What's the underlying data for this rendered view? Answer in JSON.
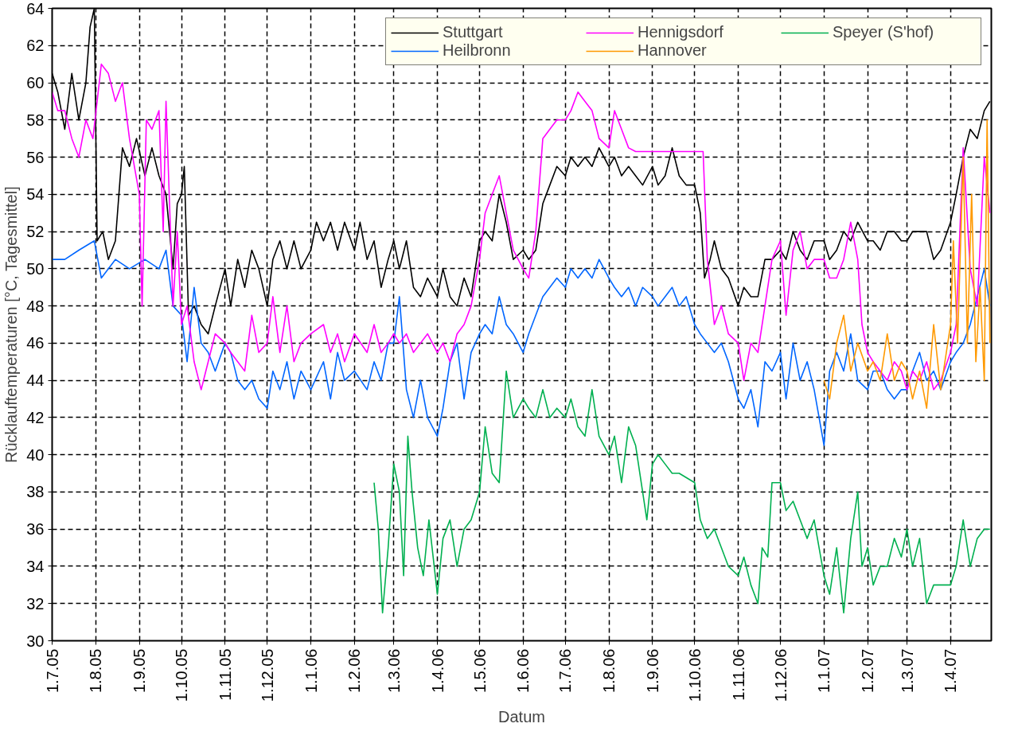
{
  "chart_data": {
    "type": "line",
    "xlabel": "Datum",
    "ylabel": "Rücklauftemperaturen [°C, Tagesmittel]",
    "xlim": [
      "2005-07-01",
      "2007-04-30"
    ],
    "ylim": [
      30,
      64
    ],
    "yticks": [
      30,
      32,
      34,
      36,
      38,
      40,
      42,
      44,
      46,
      48,
      50,
      52,
      54,
      56,
      58,
      60,
      62,
      64
    ],
    "xticks": [
      {
        "value": "2005-07-01",
        "label": "1.7.05"
      },
      {
        "value": "2005-08-01",
        "label": "1.8.05"
      },
      {
        "value": "2005-09-01",
        "label": "1.9.05"
      },
      {
        "value": "2005-10-01",
        "label": "1.10.05"
      },
      {
        "value": "2005-11-01",
        "label": "1.11.05"
      },
      {
        "value": "2005-12-01",
        "label": "1.12.05"
      },
      {
        "value": "2006-01-01",
        "label": "1.1.06"
      },
      {
        "value": "2006-02-01",
        "label": "1.2.06"
      },
      {
        "value": "2006-03-01",
        "label": "1.3.06"
      },
      {
        "value": "2006-04-01",
        "label": "1.4.06"
      },
      {
        "value": "2006-05-01",
        "label": "1.5.06"
      },
      {
        "value": "2006-06-01",
        "label": "1.6.06"
      },
      {
        "value": "2006-07-01",
        "label": "1.7.06"
      },
      {
        "value": "2006-08-01",
        "label": "1.8.06"
      },
      {
        "value": "2006-09-01",
        "label": "1.9.06"
      },
      {
        "value": "2006-10-01",
        "label": "1.10.06"
      },
      {
        "value": "2006-11-01",
        "label": "1.11.06"
      },
      {
        "value": "2006-12-01",
        "label": "1.12.06"
      },
      {
        "value": "2007-01-01",
        "label": "1.1.07"
      },
      {
        "value": "2007-02-01",
        "label": "1.2.07"
      },
      {
        "value": "2007-03-01",
        "label": "1.3.07"
      },
      {
        "value": "2007-04-01",
        "label": "1.4.07"
      }
    ],
    "grid": true,
    "legend": "top right",
    "line_style": "solid",
    "marker": "none",
    "series": [
      {
        "name": "Stuttgart",
        "color": "#000000",
        "x": [
          "2005-07-01",
          "2005-07-05",
          "2005-07-10",
          "2005-07-15",
          "2005-07-20",
          "2005-07-25",
          "2005-07-28",
          "2005-07-31",
          "2005-08-02",
          "2005-08-06",
          "2005-08-10",
          "2005-08-15",
          "2005-08-20",
          "2005-08-25",
          "2005-08-30",
          "2005-09-05",
          "2005-09-10",
          "2005-09-15",
          "2005-09-20",
          "2005-09-25",
          "2005-09-28",
          "2005-10-01",
          "2005-10-03",
          "2005-10-06",
          "2005-10-10",
          "2005-10-15",
          "2005-10-20",
          "2005-10-25",
          "2005-11-01",
          "2005-11-05",
          "2005-11-10",
          "2005-11-15",
          "2005-11-20",
          "2005-11-25",
          "2005-12-01",
          "2005-12-05",
          "2005-12-10",
          "2005-12-15",
          "2005-12-20",
          "2005-12-25",
          "2006-01-01",
          "2006-01-05",
          "2006-01-10",
          "2006-01-15",
          "2006-01-20",
          "2006-01-25",
          "2006-02-01",
          "2006-02-05",
          "2006-02-10",
          "2006-02-15",
          "2006-02-20",
          "2006-02-25",
          "2006-03-01",
          "2006-03-05",
          "2006-03-10",
          "2006-03-15",
          "2006-03-20",
          "2006-03-25",
          "2006-04-01",
          "2006-04-05",
          "2006-04-10",
          "2006-04-15",
          "2006-04-20",
          "2006-04-25",
          "2006-05-01",
          "2006-05-05",
          "2006-05-10",
          "2006-05-15",
          "2006-05-20",
          "2006-05-25",
          "2006-06-01",
          "2006-06-05",
          "2006-06-10",
          "2006-06-15",
          "2006-06-20",
          "2006-06-25",
          "2006-07-01",
          "2006-07-05",
          "2006-07-10",
          "2006-07-15",
          "2006-07-20",
          "2006-07-25",
          "2006-08-01",
          "2006-08-05",
          "2006-08-10",
          "2006-08-15",
          "2006-08-20",
          "2006-08-25",
          "2006-09-01",
          "2006-09-05",
          "2006-09-10",
          "2006-09-15",
          "2006-09-20",
          "2006-09-25",
          "2006-10-01",
          "2006-10-05",
          "2006-10-08",
          "2006-10-12",
          "2006-10-15",
          "2006-10-20",
          "2006-10-25",
          "2006-11-01",
          "2006-11-05",
          "2006-11-10",
          "2006-11-15",
          "2006-11-20",
          "2006-11-25",
          "2006-12-01",
          "2006-12-05",
          "2006-12-10",
          "2006-12-15",
          "2006-12-20",
          "2006-12-25",
          "2007-01-01",
          "2007-01-05",
          "2007-01-10",
          "2007-01-15",
          "2007-01-20",
          "2007-01-25",
          "2007-02-01",
          "2007-02-05",
          "2007-02-10",
          "2007-02-15",
          "2007-02-20",
          "2007-02-25",
          "2007-03-01",
          "2007-03-05",
          "2007-03-10",
          "2007-03-15",
          "2007-03-20",
          "2007-03-25",
          "2007-04-01",
          "2007-04-05",
          "2007-04-10",
          "2007-04-15",
          "2007-04-20",
          "2007-04-25",
          "2007-04-29"
        ],
        "values": [
          60.5,
          59.5,
          57.5,
          60.5,
          58,
          60,
          63,
          64,
          51.5,
          52,
          50.5,
          51.5,
          56.5,
          55.5,
          57,
          55,
          56.5,
          55,
          54,
          50,
          53.5,
          54,
          55.5,
          47.5,
          48,
          47,
          46.5,
          48,
          50,
          48,
          50.5,
          49,
          51,
          50,
          48,
          50.5,
          51.5,
          50,
          51.5,
          50,
          51,
          52.5,
          51.5,
          52.5,
          51,
          52.5,
          51,
          52.5,
          50.5,
          51.5,
          49,
          50.5,
          51.5,
          50,
          51.5,
          49,
          48.5,
          49.5,
          48.5,
          50,
          48.5,
          48,
          49.5,
          48.5,
          51.5,
          52,
          51.5,
          54,
          52.5,
          50.5,
          51,
          50.5,
          51,
          53.5,
          54.5,
          55.5,
          55,
          56,
          55.5,
          56,
          55.5,
          56.5,
          55.5,
          56,
          55,
          55.5,
          55,
          54.5,
          55.5,
          54.5,
          55,
          56.5,
          55,
          54.5,
          54.5,
          53,
          49.5,
          50.5,
          51.5,
          50,
          49.5,
          48,
          49,
          48.5,
          48.5,
          50.5,
          50.5,
          51,
          50.5,
          52,
          51,
          50.5,
          51.5,
          51.5,
          50.5,
          51,
          52,
          51.5,
          52.5,
          51.5,
          51.5,
          51,
          52,
          52,
          51.5,
          51.5,
          52,
          52,
          52,
          50.5,
          51,
          52.5,
          54,
          56,
          57.5,
          57,
          58.5,
          59
        ]
      },
      {
        "name": "Heilbronn",
        "color": "#0066ff",
        "x": [
          "2005-07-01",
          "2005-07-10",
          "2005-07-20",
          "2005-07-31",
          "2005-08-05",
          "2005-08-15",
          "2005-08-25",
          "2005-09-05",
          "2005-09-15",
          "2005-09-20",
          "2005-09-25",
          "2005-10-01",
          "2005-10-05",
          "2005-10-10",
          "2005-10-15",
          "2005-10-20",
          "2005-10-25",
          "2005-11-01",
          "2005-11-05",
          "2005-11-10",
          "2005-11-15",
          "2005-11-20",
          "2005-11-25",
          "2005-12-01",
          "2005-12-05",
          "2005-12-10",
          "2005-12-15",
          "2005-12-20",
          "2005-12-25",
          "2006-01-01",
          "2006-01-10",
          "2006-01-15",
          "2006-01-20",
          "2006-01-25",
          "2006-02-01",
          "2006-02-10",
          "2006-02-15",
          "2006-02-20",
          "2006-02-25",
          "2006-03-01",
          "2006-03-05",
          "2006-03-10",
          "2006-03-15",
          "2006-03-20",
          "2006-03-25",
          "2006-04-01",
          "2006-04-05",
          "2006-04-10",
          "2006-04-15",
          "2006-04-20",
          "2006-04-25",
          "2006-05-01",
          "2006-05-05",
          "2006-05-10",
          "2006-05-15",
          "2006-05-20",
          "2006-05-25",
          "2006-06-01",
          "2006-06-05",
          "2006-06-10",
          "2006-06-15",
          "2006-06-20",
          "2006-06-25",
          "2006-07-01",
          "2006-07-05",
          "2006-07-10",
          "2006-07-15",
          "2006-07-20",
          "2006-07-25",
          "2006-08-01",
          "2006-08-05",
          "2006-08-10",
          "2006-08-15",
          "2006-08-20",
          "2006-08-25",
          "2006-09-01",
          "2006-09-05",
          "2006-09-10",
          "2006-09-15",
          "2006-09-20",
          "2006-09-25",
          "2006-10-01",
          "2006-10-05",
          "2006-10-10",
          "2006-10-15",
          "2006-10-20",
          "2006-10-25",
          "2006-11-01",
          "2006-11-05",
          "2006-11-10",
          "2006-11-15",
          "2006-11-20",
          "2006-11-25",
          "2006-12-01",
          "2006-12-05",
          "2006-12-10",
          "2006-12-15",
          "2006-12-20",
          "2006-12-25",
          "2007-01-01",
          "2007-01-05",
          "2007-01-10",
          "2007-01-15",
          "2007-01-20",
          "2007-01-25",
          "2007-02-01",
          "2007-02-05",
          "2007-02-10",
          "2007-02-15",
          "2007-02-20",
          "2007-02-25",
          "2007-03-01",
          "2007-03-05",
          "2007-03-10",
          "2007-03-15",
          "2007-03-20",
          "2007-03-25",
          "2007-04-01",
          "2007-04-05",
          "2007-04-10",
          "2007-04-15",
          "2007-04-20",
          "2007-04-25",
          "2007-04-29"
        ],
        "values": [
          50.5,
          50.5,
          51,
          51.5,
          49.5,
          50.5,
          50,
          50.5,
          50,
          51,
          48,
          47.5,
          45,
          49,
          46,
          45.5,
          44.5,
          46,
          45.5,
          44,
          43.5,
          44,
          43,
          42.5,
          44.5,
          43.5,
          45,
          43,
          44.5,
          43.5,
          45,
          43,
          45.5,
          44,
          44.5,
          43.5,
          45,
          44,
          46,
          46,
          48.5,
          43.5,
          42,
          44,
          42,
          41,
          42.5,
          45,
          46,
          43,
          45.5,
          46.5,
          47,
          46.5,
          48.5,
          47,
          46.5,
          45.5,
          46.5,
          47.5,
          48.5,
          49,
          49.5,
          49,
          50,
          49.5,
          50,
          49.5,
          50.5,
          49.5,
          49,
          48.5,
          49,
          48,
          49,
          48.5,
          48,
          48.5,
          49,
          48,
          48.5,
          47,
          46.5,
          46,
          45.5,
          46,
          45,
          43,
          42.5,
          43.5,
          41.5,
          45,
          44.5,
          45.5,
          43,
          46,
          44,
          45,
          43.5,
          40.5,
          44.5,
          45.5,
          44.5,
          46.5,
          44,
          43.5,
          44.5,
          44.5,
          43.5,
          43,
          43.5,
          43.5,
          44.5,
          45.5,
          44,
          44.5,
          43.5,
          45,
          45.5,
          46,
          47,
          48.5,
          50,
          48
        ]
      },
      {
        "name": "Hennigsdorf",
        "color": "#ff00ff",
        "x": [
          "2005-07-01",
          "2005-07-05",
          "2005-07-10",
          "2005-07-15",
          "2005-07-20",
          "2005-07-25",
          "2005-07-30",
          "2005-08-05",
          "2005-08-10",
          "2005-08-15",
          "2005-08-20",
          "2005-08-25",
          "2005-09-01",
          "2005-09-03",
          "2005-09-06",
          "2005-09-10",
          "2005-09-15",
          "2005-09-18",
          "2005-09-20",
          "2005-09-25",
          "2005-09-28",
          "2005-10-01",
          "2005-10-05",
          "2005-10-10",
          "2005-10-15",
          "2005-10-20",
          "2005-10-25",
          "2005-11-01",
          "2005-11-05",
          "2005-11-10",
          "2005-11-15",
          "2005-11-20",
          "2005-11-25",
          "2005-12-01",
          "2005-12-05",
          "2005-12-10",
          "2005-12-15",
          "2005-12-20",
          "2005-12-25",
          "2006-01-01",
          "2006-01-10",
          "2006-01-15",
          "2006-01-20",
          "2006-01-25",
          "2006-02-01",
          "2006-02-10",
          "2006-02-15",
          "2006-02-20",
          "2006-02-25",
          "2006-03-01",
          "2006-03-05",
          "2006-03-10",
          "2006-03-15",
          "2006-03-20",
          "2006-03-25",
          "2006-04-01",
          "2006-04-05",
          "2006-04-10",
          "2006-04-15",
          "2006-04-20",
          "2006-04-25",
          "2006-05-01",
          "2006-05-05",
          "2006-05-10",
          "2006-05-15",
          "2006-05-20",
          "2006-05-25",
          "2006-06-01",
          "2006-06-05",
          "2006-06-10",
          "2006-06-15",
          "2006-06-20",
          "2006-06-25",
          "2006-07-01",
          "2006-07-05",
          "2006-07-10",
          "2006-07-15",
          "2006-07-20",
          "2006-07-25",
          "2006-08-01",
          "2006-08-05",
          "2006-08-10",
          "2006-08-15",
          "2006-08-20",
          "2006-09-01",
          "2006-09-15",
          "2006-10-01",
          "2006-10-07",
          "2006-10-10",
          "2006-10-15",
          "2006-10-20",
          "2006-10-25",
          "2006-11-01",
          "2006-11-05",
          "2006-11-10",
          "2006-11-15",
          "2006-11-20",
          "2006-11-25",
          "2006-12-01",
          "2006-12-05",
          "2006-12-10",
          "2006-12-15",
          "2006-12-20",
          "2006-12-25",
          "2007-01-01",
          "2007-01-05",
          "2007-01-10",
          "2007-01-15",
          "2007-01-20",
          "2007-01-25",
          "2007-01-28",
          "2007-02-01",
          "2007-02-05",
          "2007-02-10",
          "2007-02-15",
          "2007-02-20",
          "2007-02-25",
          "2007-03-01",
          "2007-03-05",
          "2007-03-10",
          "2007-03-15",
          "2007-03-20",
          "2007-03-25",
          "2007-04-01",
          "2007-04-05",
          "2007-04-10",
          "2007-04-15",
          "2007-04-20",
          "2007-04-25",
          "2007-04-29"
        ],
        "values": [
          59.5,
          58.5,
          58.5,
          57,
          56,
          58,
          57,
          61,
          60.5,
          59,
          60,
          57,
          54,
          48,
          58,
          57.5,
          58.5,
          52,
          59,
          48,
          52,
          47,
          48,
          45,
          43.5,
          45,
          46.5,
          46,
          45.5,
          45,
          44.5,
          47.5,
          45.5,
          46,
          48.5,
          45.5,
          48,
          45,
          46,
          46.5,
          47,
          45.5,
          46.5,
          45,
          46.5,
          45.5,
          47,
          45.5,
          46,
          46.5,
          46,
          46.5,
          45.5,
          46,
          46.5,
          45.5,
          46,
          45,
          46.5,
          47,
          48,
          50.5,
          53,
          54,
          55,
          53,
          51,
          50,
          49.5,
          52,
          57,
          57.5,
          58,
          58,
          58.5,
          59.5,
          59,
          58.5,
          57,
          56.5,
          58.5,
          57.5,
          56.5,
          56.3,
          56.3,
          56.3,
          56.3,
          56.3,
          50.5,
          47,
          48,
          46.5,
          46,
          44,
          46,
          45.5,
          48,
          50.5,
          51.5,
          47.5,
          51,
          52,
          50,
          50.5,
          50.5,
          49.5,
          49.5,
          50.5,
          52.5,
          50.5,
          47,
          45.5,
          45,
          44.5,
          44,
          45,
          44.5,
          43.5,
          44.5,
          44,
          45,
          43.5,
          44,
          45.5,
          47,
          56.5,
          50,
          48,
          56,
          53
        ]
      },
      {
        "name": "Hannover",
        "color": "#ff9900",
        "x": [
          "2007-01-01",
          "2007-01-05",
          "2007-01-10",
          "2007-01-15",
          "2007-01-20",
          "2007-01-25",
          "2007-02-01",
          "2007-02-05",
          "2007-02-10",
          "2007-02-15",
          "2007-02-20",
          "2007-02-25",
          "2007-03-01",
          "2007-03-05",
          "2007-03-10",
          "2007-03-15",
          "2007-03-20",
          "2007-03-25",
          "2007-04-01",
          "2007-04-03",
          "2007-04-06",
          "2007-04-10",
          "2007-04-13",
          "2007-04-16",
          "2007-04-19",
          "2007-04-22",
          "2007-04-25",
          "2007-04-27",
          "2007-04-29"
        ],
        "values": [
          44,
          43,
          46,
          47.5,
          44.5,
          46,
          44.5,
          45,
          44,
          46.5,
          44,
          45,
          44.5,
          43,
          44.5,
          42.5,
          47,
          43.5,
          47,
          51.5,
          46,
          56,
          46,
          54,
          45,
          49,
          44,
          58,
          46
        ]
      },
      {
        "name": "Speyer (S'hof)",
        "color": "#00b050",
        "x": [
          "2006-02-15",
          "2006-02-18",
          "2006-02-21",
          "2006-02-25",
          "2006-03-01",
          "2006-03-05",
          "2006-03-08",
          "2006-03-11",
          "2006-03-14",
          "2006-03-18",
          "2006-03-22",
          "2006-03-26",
          "2006-04-01",
          "2006-04-05",
          "2006-04-10",
          "2006-04-15",
          "2006-04-20",
          "2006-04-25",
          "2006-05-01",
          "2006-05-05",
          "2006-05-10",
          "2006-05-15",
          "2006-05-20",
          "2006-05-25",
          "2006-06-01",
          "2006-06-05",
          "2006-06-10",
          "2006-06-15",
          "2006-06-20",
          "2006-06-25",
          "2006-07-01",
          "2006-07-05",
          "2006-07-10",
          "2006-07-15",
          "2006-07-20",
          "2006-07-25",
          "2006-08-01",
          "2006-08-05",
          "2006-08-10",
          "2006-08-15",
          "2006-08-20",
          "2006-08-25",
          "2006-08-28",
          "2006-09-01",
          "2006-09-05",
          "2006-09-10",
          "2006-09-15",
          "2006-09-20",
          "2006-10-01",
          "2006-10-05",
          "2006-10-10",
          "2006-10-15",
          "2006-10-20",
          "2006-10-25",
          "2006-11-01",
          "2006-11-05",
          "2006-11-10",
          "2006-11-15",
          "2006-11-18",
          "2006-11-22",
          "2006-11-25",
          "2006-12-01",
          "2006-12-05",
          "2006-12-10",
          "2006-12-15",
          "2006-12-20",
          "2006-12-25",
          "2007-01-01",
          "2007-01-05",
          "2007-01-10",
          "2007-01-15",
          "2007-01-20",
          "2007-01-25",
          "2007-01-28",
          "2007-02-01",
          "2007-02-05",
          "2007-02-10",
          "2007-02-15",
          "2007-02-20",
          "2007-02-25",
          "2007-03-01",
          "2007-03-05",
          "2007-03-10",
          "2007-03-15",
          "2007-03-20",
          "2007-03-25",
          "2007-04-01",
          "2007-04-05",
          "2007-04-10",
          "2007-04-15",
          "2007-04-20",
          "2007-04-25",
          "2007-04-29"
        ],
        "values": [
          38.5,
          36,
          31.5,
          35,
          39.5,
          38,
          33.5,
          41,
          38,
          35,
          33.5,
          36.5,
          32.5,
          35.5,
          36.5,
          34,
          36,
          36.5,
          38,
          41.5,
          39,
          38.5,
          44.5,
          42,
          43,
          42.5,
          42,
          43.5,
          42,
          42.5,
          42,
          43,
          41.5,
          41,
          43.5,
          41,
          40,
          41,
          38.5,
          41.5,
          40.5,
          38,
          36.5,
          39.5,
          40,
          39.5,
          39,
          39,
          38.5,
          36.5,
          35.5,
          36,
          35,
          34,
          33.5,
          34.5,
          33,
          32,
          35,
          34.5,
          38.5,
          38.5,
          37,
          37.5,
          36.5,
          35.5,
          36.5,
          33.5,
          32.5,
          35,
          31.5,
          35.5,
          38,
          34,
          35,
          33,
          34,
          34,
          35.5,
          34.5,
          36,
          34,
          35.5,
          32,
          33,
          33,
          33,
          34,
          36.5,
          34,
          35.5,
          36,
          36
        ]
      }
    ]
  }
}
